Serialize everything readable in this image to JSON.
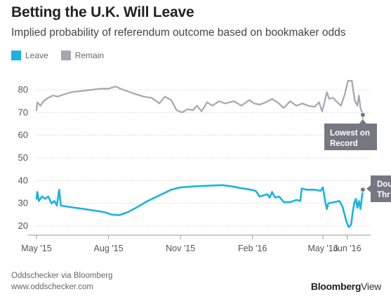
{
  "header": {
    "title": "Betting the U.K. Will Leave",
    "subtitle": "Implied probability of referendum outcome based on bookmaker odds"
  },
  "footer": {
    "source_line1": "Oddschecker via Bloomberg",
    "source_line2": "www.oddschecker.com",
    "brand_bold": "Bloomberg",
    "brand_light": "View"
  },
  "colors": {
    "leave": "#1ab3e0",
    "remain": "#a7a6b0",
    "callout": "#777782",
    "grid": "#c8c8c8",
    "axis": "#999999"
  },
  "chart_data": {
    "type": "line",
    "title": "Betting the U.K. Will Leave",
    "subtitle": "Implied probability of referendum outcome based on bookmaker odds",
    "xlabel": "",
    "ylabel": "",
    "ylim": [
      15,
      85
    ],
    "xlim": [
      "2015-05-01",
      "2016-06-22"
    ],
    "yticks": [
      20,
      30,
      40,
      50,
      60,
      70,
      80
    ],
    "xticks": [
      {
        "date": "2015-05-01",
        "label": "May '15"
      },
      {
        "date": "2015-08-01",
        "label": "Aug '15"
      },
      {
        "date": "2015-11-01",
        "label": "Nov '15"
      },
      {
        "date": "2016-02-01",
        "label": "Feb '16"
      },
      {
        "date": "2016-05-01",
        "label": "May '16"
      },
      {
        "date": "2016-06-01",
        "label": "Jun '16"
      }
    ],
    "grid": true,
    "legend": "top-left",
    "series": [
      {
        "name": "Leave",
        "color": "#1ab3e0",
        "points": [
          [
            "2015-05-01",
            32
          ],
          [
            "2015-05-02",
            35
          ],
          [
            "2015-05-04",
            31
          ],
          [
            "2015-05-08",
            33
          ],
          [
            "2015-05-12",
            32
          ],
          [
            "2015-05-16",
            33
          ],
          [
            "2015-05-20",
            30
          ],
          [
            "2015-05-24",
            31
          ],
          [
            "2015-05-27",
            29
          ],
          [
            "2015-05-30",
            36
          ],
          [
            "2015-06-01",
            29
          ],
          [
            "2015-06-10",
            28.5
          ],
          [
            "2015-06-20",
            28
          ],
          [
            "2015-07-01",
            27.5
          ],
          [
            "2015-07-10",
            27
          ],
          [
            "2015-07-20",
            26.5
          ],
          [
            "2015-07-28",
            26
          ],
          [
            "2015-08-05",
            25
          ],
          [
            "2015-08-15",
            24.8
          ],
          [
            "2015-08-25",
            26
          ],
          [
            "2015-09-05",
            28
          ],
          [
            "2015-09-20",
            31
          ],
          [
            "2015-10-05",
            33.5
          ],
          [
            "2015-10-20",
            36
          ],
          [
            "2015-11-01",
            37
          ],
          [
            "2015-11-20",
            37.5
          ],
          [
            "2015-12-10",
            37.8
          ],
          [
            "2015-12-25",
            38
          ],
          [
            "2016-01-05",
            37.5
          ],
          [
            "2016-01-15",
            36.8
          ],
          [
            "2016-01-25",
            36.3
          ],
          [
            "2016-02-05",
            35.5
          ],
          [
            "2016-02-10",
            33
          ],
          [
            "2016-02-15",
            33.5
          ],
          [
            "2016-02-20",
            34
          ],
          [
            "2016-02-23",
            32.5
          ],
          [
            "2016-02-26",
            35
          ],
          [
            "2016-03-01",
            32.5
          ],
          [
            "2016-03-06",
            33
          ],
          [
            "2016-03-12",
            30.5
          ],
          [
            "2016-03-20",
            30.5
          ],
          [
            "2016-03-28",
            31.5
          ],
          [
            "2016-04-02",
            31
          ],
          [
            "2016-04-04",
            36.5
          ],
          [
            "2016-04-10",
            36
          ],
          [
            "2016-04-20",
            36
          ],
          [
            "2016-04-28",
            35.5
          ],
          [
            "2016-05-01",
            37
          ],
          [
            "2016-05-02",
            35
          ],
          [
            "2016-05-04",
            30.5
          ],
          [
            "2016-05-06",
            27.5
          ],
          [
            "2016-05-08",
            30
          ],
          [
            "2016-05-15",
            30.5
          ],
          [
            "2016-05-22",
            31
          ],
          [
            "2016-05-26",
            28.5
          ],
          [
            "2016-05-31",
            22
          ],
          [
            "2016-06-03",
            19.5
          ],
          [
            "2016-06-06",
            20.5
          ],
          [
            "2016-06-08",
            26
          ],
          [
            "2016-06-10",
            30
          ],
          [
            "2016-06-12",
            32
          ],
          [
            "2016-06-14",
            28
          ],
          [
            "2016-06-16",
            31
          ],
          [
            "2016-06-18",
            27.5
          ],
          [
            "2016-06-21",
            36
          ]
        ]
      },
      {
        "name": "Remain",
        "color": "#a7a6b0",
        "points": [
          [
            "2015-05-01",
            71
          ],
          [
            "2015-05-02",
            74.5
          ],
          [
            "2015-05-06",
            73
          ],
          [
            "2015-05-10",
            75
          ],
          [
            "2015-05-16",
            76.5
          ],
          [
            "2015-05-22",
            77.5
          ],
          [
            "2015-05-28",
            77
          ],
          [
            "2015-06-05",
            78
          ],
          [
            "2015-06-15",
            79
          ],
          [
            "2015-06-28",
            79.5
          ],
          [
            "2015-07-10",
            80
          ],
          [
            "2015-07-22",
            80.5
          ],
          [
            "2015-08-01",
            80.5
          ],
          [
            "2015-08-10",
            81.5
          ],
          [
            "2015-08-20",
            80
          ],
          [
            "2015-09-01",
            78.5
          ],
          [
            "2015-09-15",
            77
          ],
          [
            "2015-09-25",
            76.5
          ],
          [
            "2015-10-05",
            74
          ],
          [
            "2015-10-12",
            77
          ],
          [
            "2015-10-20",
            75.5
          ],
          [
            "2015-10-27",
            71
          ],
          [
            "2015-11-03",
            70
          ],
          [
            "2015-11-10",
            71.5
          ],
          [
            "2015-11-17",
            71
          ],
          [
            "2015-11-22",
            73
          ],
          [
            "2015-11-28",
            70.5
          ],
          [
            "2015-12-05",
            74.5
          ],
          [
            "2015-12-12",
            73
          ],
          [
            "2015-12-20",
            75
          ],
          [
            "2015-12-28",
            74
          ],
          [
            "2016-01-08",
            75
          ],
          [
            "2016-01-18",
            73
          ],
          [
            "2016-01-28",
            75.5
          ],
          [
            "2016-02-03",
            74
          ],
          [
            "2016-02-10",
            73.5
          ],
          [
            "2016-02-18",
            74.5
          ],
          [
            "2016-02-26",
            76
          ],
          [
            "2016-03-04",
            74.5
          ],
          [
            "2016-03-12",
            72
          ],
          [
            "2016-03-20",
            75
          ],
          [
            "2016-03-28",
            73
          ],
          [
            "2016-04-05",
            74
          ],
          [
            "2016-04-12",
            73
          ],
          [
            "2016-04-20",
            72.5
          ],
          [
            "2016-04-26",
            74.5
          ],
          [
            "2016-04-30",
            70.5
          ],
          [
            "2016-05-03",
            74.5
          ],
          [
            "2016-05-06",
            79
          ],
          [
            "2016-05-09",
            76
          ],
          [
            "2016-05-14",
            76.5
          ],
          [
            "2016-05-18",
            75
          ],
          [
            "2016-05-24",
            73
          ],
          [
            "2016-05-29",
            78
          ],
          [
            "2016-06-02",
            84
          ],
          [
            "2016-06-07",
            84
          ],
          [
            "2016-06-09",
            79
          ],
          [
            "2016-06-11",
            75
          ],
          [
            "2016-06-14",
            73
          ],
          [
            "2016-06-16",
            77.5
          ],
          [
            "2016-06-18",
            72
          ],
          [
            "2016-06-21",
            69
          ]
        ]
      }
    ],
    "annotations": [
      {
        "series": "Remain",
        "date": "2016-06-21",
        "value": 69,
        "text_lines": [
          "Lowest on",
          "Record"
        ]
      },
      {
        "series": "Leave",
        "date": "2016-06-21",
        "value": 36,
        "text_lines": [
          "Dou",
          "Thr"
        ]
      }
    ]
  }
}
